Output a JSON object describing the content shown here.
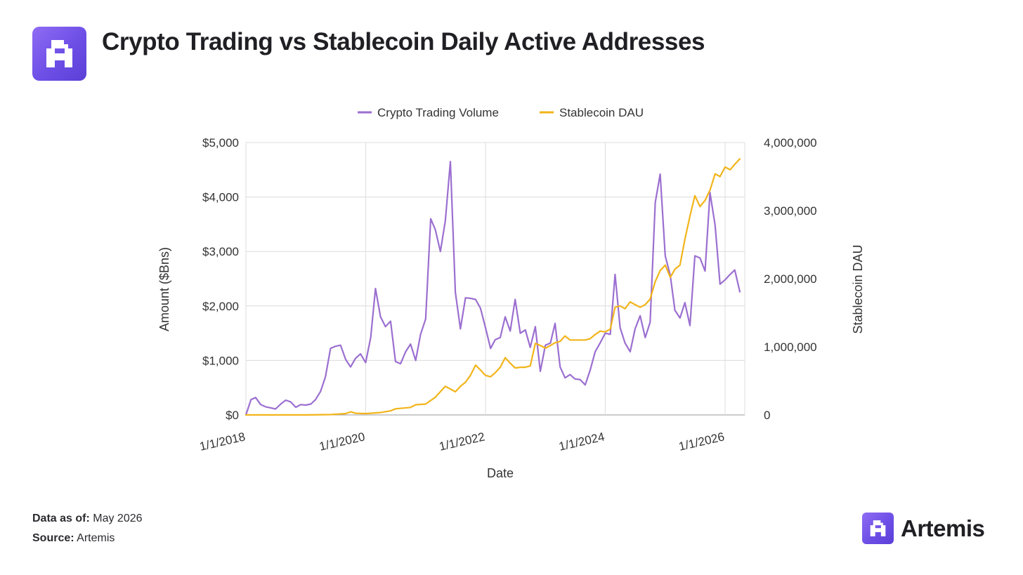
{
  "header": {
    "title": "Crypto Trading vs Stablecoin Daily Active Addresses",
    "logo_icon": "artemis-logo-icon"
  },
  "footer": {
    "data_as_of_label": "Data as of:",
    "data_as_of_value": "May 2026",
    "source_label": "Source:",
    "source_value": "Artemis",
    "brand_name": "Artemis"
  },
  "colors": {
    "trading": "#9b6fd0",
    "dau": "#f2b41a",
    "brand": "#6d4fe6"
  },
  "chart_data": {
    "type": "line",
    "xlabel": "Date",
    "ylabel_left": "Amount ($Bns)",
    "ylabel_right": "Stablecoin DAU",
    "x_range": [
      "2018-01-01",
      "2026-05-01"
    ],
    "x_ticks": [
      "1/1/2018",
      "1/1/2020",
      "1/1/2022",
      "1/1/2024",
      "1/1/2026"
    ],
    "x_tick_dates": [
      "2018-01-01",
      "2020-01-01",
      "2022-01-01",
      "2024-01-01",
      "2026-01-01"
    ],
    "ylim_left": [
      0,
      5000
    ],
    "ylim_right": [
      0,
      4000000
    ],
    "y_ticks_left": [
      "$0",
      "$1,000",
      "$2,000",
      "$3,000",
      "$4,000",
      "$5,000"
    ],
    "y_ticks_right": [
      "0",
      "1,000,000",
      "2,000,000",
      "3,000,000",
      "4,000,000"
    ],
    "grid": true,
    "legend_position": "top",
    "series": [
      {
        "name": "Crypto Trading Volume",
        "axis": "left",
        "color": "#9b6fd0",
        "points": [
          [
            "2018-01-01",
            0
          ],
          [
            "2018-02-01",
            280
          ],
          [
            "2018-03-01",
            320
          ],
          [
            "2018-04-01",
            190
          ],
          [
            "2018-05-01",
            150
          ],
          [
            "2018-06-01",
            130
          ],
          [
            "2018-07-01",
            110
          ],
          [
            "2018-08-01",
            200
          ],
          [
            "2018-09-01",
            270
          ],
          [
            "2018-10-01",
            240
          ],
          [
            "2018-11-01",
            140
          ],
          [
            "2018-12-01",
            190
          ],
          [
            "2019-01-01",
            180
          ],
          [
            "2019-02-01",
            200
          ],
          [
            "2019-03-01",
            280
          ],
          [
            "2019-04-01",
            430
          ],
          [
            "2019-05-01",
            700
          ],
          [
            "2019-06-01",
            1220
          ],
          [
            "2019-07-01",
            1260
          ],
          [
            "2019-08-01",
            1280
          ],
          [
            "2019-09-01",
            1020
          ],
          [
            "2019-10-01",
            880
          ],
          [
            "2019-11-01",
            1040
          ],
          [
            "2019-12-01",
            1120
          ],
          [
            "2020-01-01",
            960
          ],
          [
            "2020-02-01",
            1420
          ],
          [
            "2020-03-01",
            2320
          ],
          [
            "2020-04-01",
            1800
          ],
          [
            "2020-05-01",
            1620
          ],
          [
            "2020-06-01",
            1720
          ],
          [
            "2020-07-01",
            980
          ],
          [
            "2020-08-01",
            940
          ],
          [
            "2020-09-01",
            1160
          ],
          [
            "2020-10-01",
            1300
          ],
          [
            "2020-11-01",
            1000
          ],
          [
            "2020-12-01",
            1480
          ],
          [
            "2021-01-01",
            1760
          ],
          [
            "2021-02-01",
            3600
          ],
          [
            "2021-03-01",
            3400
          ],
          [
            "2021-04-01",
            3000
          ],
          [
            "2021-05-01",
            3560
          ],
          [
            "2021-06-01",
            4650
          ],
          [
            "2021-07-01",
            2250
          ],
          [
            "2021-08-01",
            1580
          ],
          [
            "2021-09-01",
            2150
          ],
          [
            "2021-10-01",
            2140
          ],
          [
            "2021-11-01",
            2120
          ],
          [
            "2021-12-01",
            1960
          ],
          [
            "2022-01-01",
            1600
          ],
          [
            "2022-02-01",
            1220
          ],
          [
            "2022-03-01",
            1380
          ],
          [
            "2022-04-01",
            1420
          ],
          [
            "2022-05-01",
            1800
          ],
          [
            "2022-06-01",
            1540
          ],
          [
            "2022-07-01",
            2120
          ],
          [
            "2022-08-01",
            1500
          ],
          [
            "2022-09-01",
            1560
          ],
          [
            "2022-10-01",
            1240
          ],
          [
            "2022-11-01",
            1620
          ],
          [
            "2022-12-01",
            800
          ],
          [
            "2023-01-01",
            1280
          ],
          [
            "2023-02-01",
            1320
          ],
          [
            "2023-03-01",
            1680
          ],
          [
            "2023-04-01",
            880
          ],
          [
            "2023-05-01",
            680
          ],
          [
            "2023-06-01",
            740
          ],
          [
            "2023-07-01",
            660
          ],
          [
            "2023-08-01",
            650
          ],
          [
            "2023-09-01",
            550
          ],
          [
            "2023-10-01",
            820
          ],
          [
            "2023-11-01",
            1160
          ],
          [
            "2023-12-01",
            1320
          ],
          [
            "2024-01-01",
            1500
          ],
          [
            "2024-02-01",
            1480
          ],
          [
            "2024-03-01",
            2580
          ],
          [
            "2024-04-01",
            1600
          ],
          [
            "2024-05-01",
            1320
          ],
          [
            "2024-06-01",
            1160
          ],
          [
            "2024-07-01",
            1580
          ],
          [
            "2024-08-01",
            1820
          ],
          [
            "2024-09-01",
            1420
          ],
          [
            "2024-10-01",
            1700
          ],
          [
            "2024-11-01",
            3900
          ],
          [
            "2024-12-01",
            4420
          ],
          [
            "2025-01-01",
            2920
          ],
          [
            "2025-02-01",
            2560
          ],
          [
            "2025-03-01",
            1920
          ],
          [
            "2025-04-01",
            1780
          ],
          [
            "2025-05-01",
            2060
          ],
          [
            "2025-06-01",
            1640
          ],
          [
            "2025-07-01",
            2920
          ],
          [
            "2025-08-01",
            2880
          ],
          [
            "2025-09-01",
            2640
          ],
          [
            "2025-10-01",
            4080
          ],
          [
            "2025-11-01",
            3480
          ],
          [
            "2025-12-01",
            2400
          ],
          [
            "2026-01-01",
            2480
          ],
          [
            "2026-02-01",
            2580
          ],
          [
            "2026-03-01",
            2660
          ],
          [
            "2026-04-01",
            2260
          ]
        ]
      },
      {
        "name": "Stablecoin DAU",
        "axis": "right",
        "color": "#f2b41a",
        "points": [
          [
            "2018-01-01",
            0
          ],
          [
            "2018-06-01",
            0
          ],
          [
            "2019-01-01",
            0
          ],
          [
            "2019-06-01",
            5000
          ],
          [
            "2019-09-01",
            20000
          ],
          [
            "2019-10-01",
            45000
          ],
          [
            "2019-11-01",
            25000
          ],
          [
            "2020-01-01",
            20000
          ],
          [
            "2020-04-01",
            35000
          ],
          [
            "2020-06-01",
            60000
          ],
          [
            "2020-07-01",
            90000
          ],
          [
            "2020-10-01",
            110000
          ],
          [
            "2020-11-01",
            150000
          ],
          [
            "2021-01-01",
            160000
          ],
          [
            "2021-03-01",
            260000
          ],
          [
            "2021-05-01",
            420000
          ],
          [
            "2021-06-01",
            380000
          ],
          [
            "2021-07-01",
            340000
          ],
          [
            "2021-08-01",
            420000
          ],
          [
            "2021-09-01",
            480000
          ],
          [
            "2021-10-01",
            580000
          ],
          [
            "2021-11-01",
            730000
          ],
          [
            "2021-12-01",
            660000
          ],
          [
            "2022-01-01",
            580000
          ],
          [
            "2022-02-01",
            560000
          ],
          [
            "2022-03-01",
            620000
          ],
          [
            "2022-04-01",
            700000
          ],
          [
            "2022-05-01",
            840000
          ],
          [
            "2022-06-01",
            760000
          ],
          [
            "2022-07-01",
            690000
          ],
          [
            "2022-08-01",
            700000
          ],
          [
            "2022-09-01",
            700000
          ],
          [
            "2022-10-01",
            720000
          ],
          [
            "2022-11-01",
            1050000
          ],
          [
            "2022-12-01",
            1020000
          ],
          [
            "2023-01-01",
            980000
          ],
          [
            "2023-02-01",
            1020000
          ],
          [
            "2023-03-01",
            1060000
          ],
          [
            "2023-04-01",
            1080000
          ],
          [
            "2023-05-01",
            1160000
          ],
          [
            "2023-06-01",
            1100000
          ],
          [
            "2023-07-01",
            1100000
          ],
          [
            "2023-08-01",
            1100000
          ],
          [
            "2023-09-01",
            1100000
          ],
          [
            "2023-10-01",
            1120000
          ],
          [
            "2023-11-01",
            1180000
          ],
          [
            "2023-12-01",
            1230000
          ],
          [
            "2024-01-01",
            1220000
          ],
          [
            "2024-02-01",
            1260000
          ],
          [
            "2024-03-01",
            1580000
          ],
          [
            "2024-04-01",
            1600000
          ],
          [
            "2024-05-01",
            1560000
          ],
          [
            "2024-06-01",
            1660000
          ],
          [
            "2024-07-01",
            1620000
          ],
          [
            "2024-08-01",
            1580000
          ],
          [
            "2024-09-01",
            1620000
          ],
          [
            "2024-10-01",
            1700000
          ],
          [
            "2024-11-01",
            1960000
          ],
          [
            "2024-12-01",
            2120000
          ],
          [
            "2025-01-01",
            2200000
          ],
          [
            "2025-02-01",
            2020000
          ],
          [
            "2025-03-01",
            2140000
          ],
          [
            "2025-04-01",
            2200000
          ],
          [
            "2025-05-01",
            2580000
          ],
          [
            "2025-06-01",
            2920000
          ],
          [
            "2025-07-01",
            3220000
          ],
          [
            "2025-08-01",
            3060000
          ],
          [
            "2025-09-01",
            3150000
          ],
          [
            "2025-10-01",
            3300000
          ],
          [
            "2025-11-01",
            3540000
          ],
          [
            "2025-12-01",
            3500000
          ],
          [
            "2026-01-01",
            3640000
          ],
          [
            "2026-02-01",
            3600000
          ],
          [
            "2026-03-01",
            3680000
          ],
          [
            "2026-04-01",
            3760000
          ]
        ]
      }
    ]
  }
}
